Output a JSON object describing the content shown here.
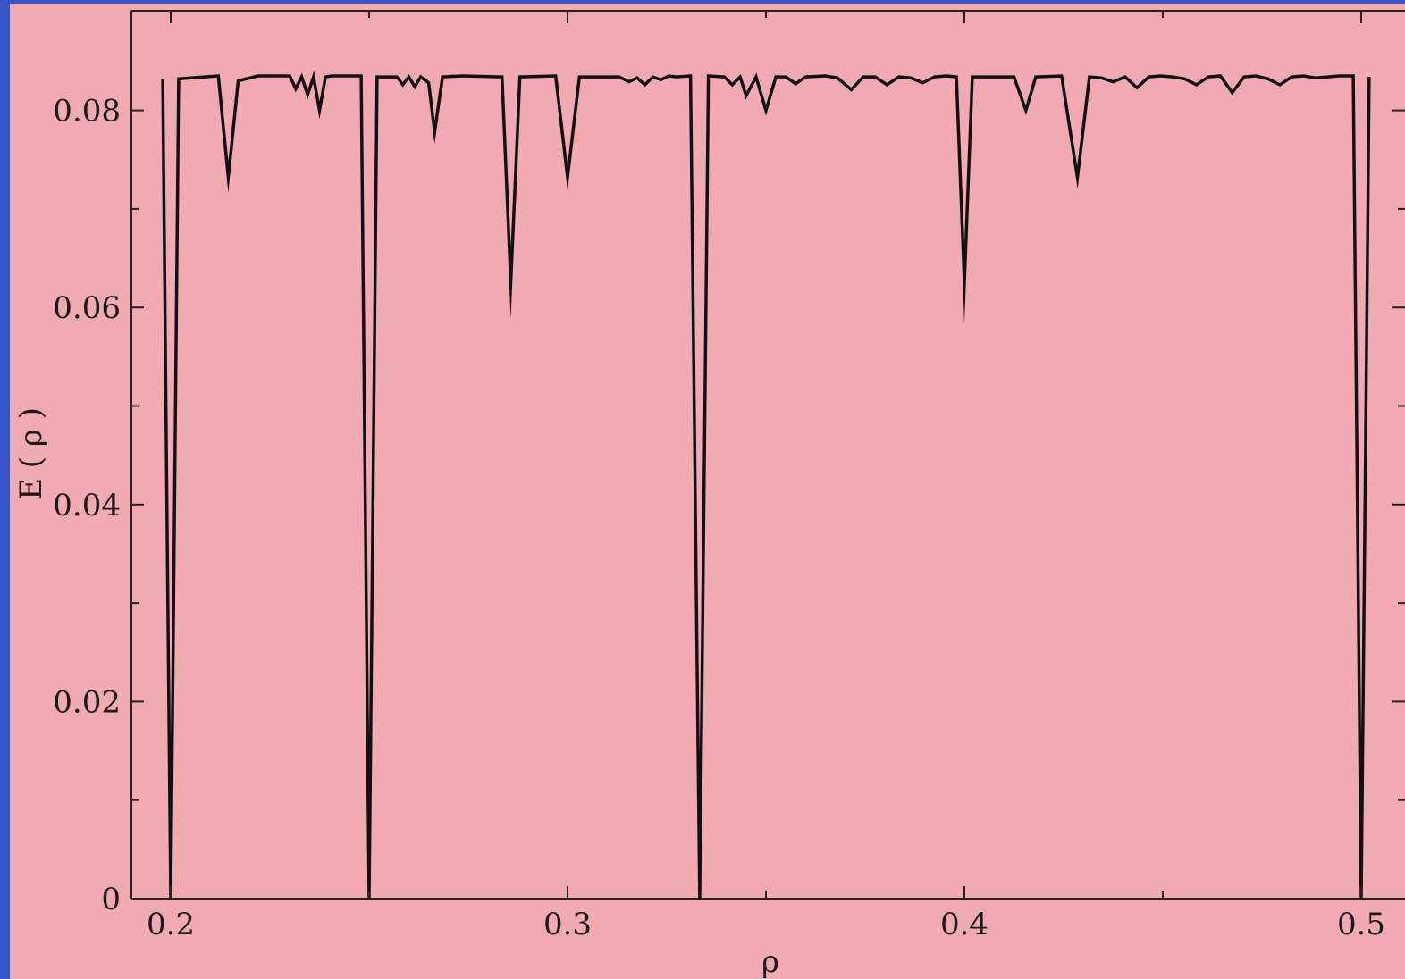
{
  "colors": {
    "background": "#f2aab2",
    "frame": "#3a55c8",
    "line": "#111111",
    "axis": "#222222"
  },
  "chart_data": {
    "type": "line",
    "title": "",
    "xlabel": "ρ",
    "ylabel": "E ( ρ )",
    "xlim": [
      0.19,
      0.51
    ],
    "ylim": [
      0,
      0.09
    ],
    "x_major_ticks": [
      0.2,
      0.3,
      0.4,
      0.5
    ],
    "x_tick_labels": [
      "0.2",
      "0.3",
      "0.4",
      "0.5"
    ],
    "x_minor_ticks": [
      0.25,
      0.35,
      0.45
    ],
    "y_major_ticks": [
      0,
      0.02,
      0.04,
      0.06,
      0.08
    ],
    "y_tick_labels": [
      "0",
      "0.02",
      "0.04",
      "0.06",
      "0.08"
    ],
    "y_minor_ticks": [
      0.01,
      0.03,
      0.05,
      0.07
    ],
    "grid": false,
    "legend": "none",
    "series": [
      {
        "x": [
          0.198,
          0.2,
          0.202,
          0.212,
          0.2145,
          0.217,
          0.222,
          0.23,
          0.2315,
          0.233,
          0.2345,
          0.236,
          0.2375,
          0.239,
          0.2405,
          0.243,
          0.248,
          0.25,
          0.252,
          0.257,
          0.2585,
          0.26,
          0.2615,
          0.263,
          0.265,
          0.2665,
          0.2685,
          0.2735,
          0.2835,
          0.2857,
          0.288,
          0.297,
          0.3,
          0.303,
          0.313,
          0.3155,
          0.3175,
          0.3195,
          0.3215,
          0.3235,
          0.3255,
          0.3275,
          0.331,
          0.3333,
          0.3355,
          0.3395,
          0.3415,
          0.3435,
          0.345,
          0.3475,
          0.35,
          0.3525,
          0.355,
          0.3575,
          0.36,
          0.365,
          0.368,
          0.3715,
          0.3745,
          0.3775,
          0.3805,
          0.3835,
          0.3865,
          0.3895,
          0.3925,
          0.3955,
          0.398,
          0.4,
          0.402,
          0.4125,
          0.4155,
          0.418,
          0.4245,
          0.4285,
          0.4315,
          0.4345,
          0.4375,
          0.4405,
          0.4435,
          0.4465,
          0.4495,
          0.4525,
          0.4555,
          0.4585,
          0.4615,
          0.4645,
          0.4675,
          0.4705,
          0.4735,
          0.4765,
          0.4795,
          0.4825,
          0.4855,
          0.4885,
          0.4915,
          0.4945,
          0.498,
          0.5,
          0.502
        ],
        "y": [
          0.0832,
          0.0,
          0.0832,
          0.0835,
          0.0732,
          0.083,
          0.0835,
          0.0835,
          0.0822,
          0.0834,
          0.0816,
          0.0834,
          0.08,
          0.0834,
          0.0835,
          0.0835,
          0.0835,
          0.0,
          0.0834,
          0.0834,
          0.0826,
          0.0834,
          0.0824,
          0.0834,
          0.0828,
          0.0778,
          0.0834,
          0.0835,
          0.0834,
          0.0625,
          0.0834,
          0.0835,
          0.0732,
          0.0834,
          0.0834,
          0.0829,
          0.0833,
          0.0826,
          0.0834,
          0.0831,
          0.0835,
          0.0834,
          0.0835,
          0.0,
          0.0835,
          0.0834,
          0.0826,
          0.0834,
          0.0815,
          0.0834,
          0.08,
          0.0834,
          0.0834,
          0.0827,
          0.0834,
          0.0835,
          0.0833,
          0.0821,
          0.0834,
          0.0834,
          0.0826,
          0.0834,
          0.0833,
          0.0828,
          0.0834,
          0.0835,
          0.0834,
          0.0625,
          0.0834,
          0.0834,
          0.08,
          0.0834,
          0.0835,
          0.0732,
          0.0834,
          0.0833,
          0.0829,
          0.0834,
          0.0823,
          0.0834,
          0.0835,
          0.0834,
          0.0832,
          0.0826,
          0.0834,
          0.0835,
          0.0818,
          0.0834,
          0.0835,
          0.0832,
          0.0826,
          0.0834,
          0.0835,
          0.0833,
          0.0834,
          0.0835,
          0.0835,
          0.0,
          0.0834
        ]
      }
    ]
  }
}
